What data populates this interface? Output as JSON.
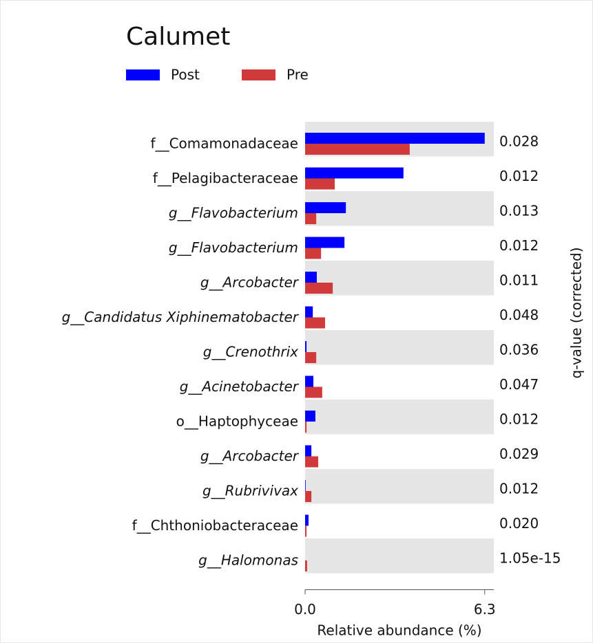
{
  "chart_data": {
    "type": "bar",
    "orientation": "horizontal",
    "title": "Calumet",
    "categories": [
      "f__Comamonadaceae",
      "f__Pelagibacteraceae",
      "g__Flavobacterium",
      "g__Flavobacterium",
      "g__Arcobacter",
      "g__Candidatus Xiphinematobacter",
      "g__Crenothrix",
      "g__Acinetobacter",
      "o__Haptophyceae",
      "g__Arcobacter",
      "g__Rubrivivax",
      "f__Chthoniobacteraceae",
      "g__Halomonas"
    ],
    "italic": [
      false,
      false,
      true,
      true,
      true,
      true,
      true,
      true,
      false,
      true,
      true,
      false,
      true
    ],
    "series": [
      {
        "name": "Post",
        "color": "#0000ff",
        "values": [
          6.3,
          3.45,
          1.43,
          1.38,
          0.41,
          0.27,
          0.05,
          0.29,
          0.36,
          0.22,
          0.02,
          0.12,
          0.0
        ]
      },
      {
        "name": "Pre",
        "color": "#d03a3a",
        "values": [
          3.67,
          1.04,
          0.39,
          0.56,
          0.97,
          0.7,
          0.39,
          0.6,
          0.05,
          0.46,
          0.22,
          0.05,
          0.07
        ]
      }
    ],
    "q_values": [
      "0.028",
      "0.012",
      "0.013",
      "0.012",
      "0.011",
      "0.048",
      "0.036",
      "0.047",
      "0.012",
      "0.029",
      "0.012",
      "0.020",
      "1.05e-15"
    ],
    "xlim": [
      0,
      6.62
    ],
    "xticks": [
      {
        "value": 0,
        "label": "0.0"
      },
      6.3
    ],
    "xlabel": "Relative abundance (%)",
    "y2label": "q-value (corrected)"
  }
}
